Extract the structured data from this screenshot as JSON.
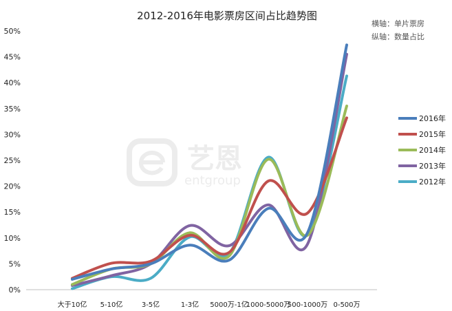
{
  "chart_data": {
    "type": "line",
    "title": "2012-2016年电影票房区间占比趋势图",
    "notes": [
      "横轴：单片票房",
      "纵轴：数量占比"
    ],
    "categories": [
      "大于10亿",
      "5-10亿",
      "3-5亿",
      "1-3亿",
      "5000万-1亿",
      "1000-5000万",
      "500-1000万",
      "0-500万"
    ],
    "ylim": [
      0,
      50
    ],
    "yticks": [
      "0%",
      "5%",
      "10%",
      "15%",
      "20%",
      "25%",
      "30%",
      "35%",
      "40%",
      "45%",
      "50%"
    ],
    "grid": false,
    "legend_position": "right",
    "series": [
      {
        "name": "2016年",
        "color": "#4a7ebb",
        "values": [
          2.0,
          4.0,
          5.0,
          8.6,
          5.7,
          15.7,
          11.0,
          47.3
        ]
      },
      {
        "name": "2015年",
        "color": "#c0504d",
        "values": [
          2.2,
          5.1,
          5.5,
          10.5,
          7.2,
          21.0,
          14.8,
          33.2
        ]
      },
      {
        "name": "2014年",
        "color": "#9bbb59",
        "values": [
          1.0,
          4.0,
          5.0,
          11.0,
          6.5,
          25.2,
          10.5,
          35.5
        ]
      },
      {
        "name": "2013年",
        "color": "#8064a2",
        "values": [
          0.8,
          2.7,
          5.0,
          12.4,
          8.5,
          16.4,
          8.8,
          45.5
        ]
      },
      {
        "name": "2012年",
        "color": "#4bacc6",
        "values": [
          0.2,
          2.5,
          2.2,
          10.2,
          7.0,
          25.6,
          10.6,
          41.3
        ]
      }
    ]
  },
  "watermark": {
    "brand": "艺恩",
    "sub": "entgroup"
  }
}
